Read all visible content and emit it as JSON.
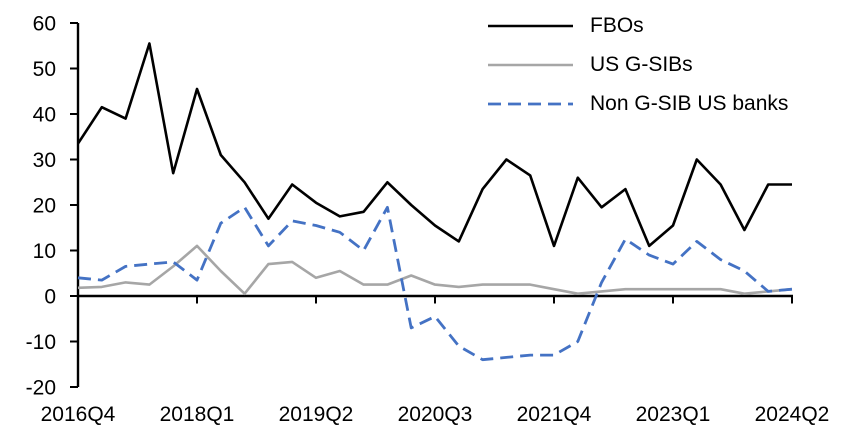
{
  "chart_data": {
    "type": "line",
    "title": "",
    "xlabel": "",
    "ylabel": "",
    "grid": false,
    "legend_position": "top-right",
    "ylim": [
      -20,
      60
    ],
    "y_ticks": [
      60,
      50,
      40,
      30,
      20,
      10,
      0,
      -10,
      -20
    ],
    "y_tick_labels": [
      "60",
      "50",
      "40",
      "30",
      "20",
      "10",
      "0",
      "-10",
      "-20"
    ],
    "x_categories": [
      "2016Q4",
      "2017Q1",
      "2017Q2",
      "2017Q3",
      "2017Q4",
      "2018Q1",
      "2018Q2",
      "2018Q3",
      "2018Q4",
      "2019Q1",
      "2019Q2",
      "2019Q3",
      "2019Q4",
      "2020Q1",
      "2020Q2",
      "2020Q3",
      "2020Q4",
      "2021Q1",
      "2021Q2",
      "2021Q3",
      "2021Q4",
      "2022Q1",
      "2022Q2",
      "2022Q3",
      "2022Q4",
      "2023Q1",
      "2023Q2",
      "2023Q3",
      "2023Q4",
      "2024Q1",
      "2024Q2"
    ],
    "x_tick_labels": [
      "2016Q4",
      "2018Q1",
      "2019Q2",
      "2020Q3",
      "2021Q4",
      "2023Q1",
      "2024Q2"
    ],
    "x_tick_indices": [
      0,
      5,
      10,
      15,
      20,
      25,
      30
    ],
    "axis_color": "#000000",
    "series": [
      {
        "name": "FBOs",
        "color": "#000000",
        "style": "solid",
        "values": [
          33.5,
          41.5,
          39,
          55.5,
          27,
          45.5,
          31,
          25,
          17,
          24.5,
          20.5,
          17.5,
          18.5,
          25,
          20,
          15.5,
          12,
          23.5,
          30,
          26.5,
          11,
          26,
          19.5,
          23.5,
          11,
          15.5,
          30,
          24.5,
          14.5,
          24.5,
          24.5
        ]
      },
      {
        "name": "US G-SIBs",
        "color": "#a6a6a6",
        "style": "solid",
        "values": [
          1.8,
          2,
          3,
          2.5,
          6.5,
          11,
          5.5,
          0.5,
          7,
          7.5,
          4,
          5.5,
          2.5,
          2.5,
          4.5,
          2.5,
          2,
          2.5,
          2.5,
          2.5,
          1.5,
          0.5,
          1,
          1.5,
          1.5,
          1.5,
          1.5,
          1.5,
          0.5,
          1,
          1.5
        ]
      },
      {
        "name": "Non G-SIB US banks",
        "color": "#4472c4",
        "style": "dashed",
        "values": [
          4,
          3.5,
          6.5,
          7,
          7.5,
          3.5,
          16,
          19.5,
          11,
          16.5,
          15.5,
          14,
          10,
          19.5,
          -7,
          -4.5,
          -11,
          -14,
          -13.5,
          -13,
          -13,
          -10,
          3,
          12.5,
          9,
          7,
          12,
          8,
          5.5,
          1,
          1.5
        ]
      }
    ]
  }
}
